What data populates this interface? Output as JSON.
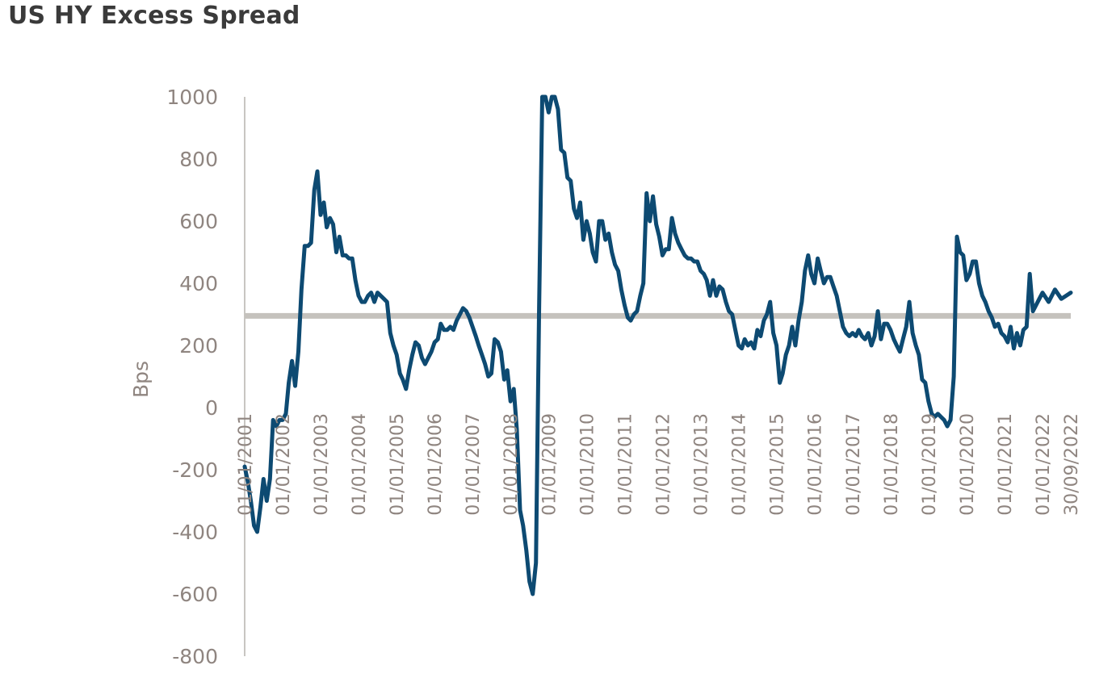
{
  "title": "US HY Excess Spread",
  "chart_data": {
    "type": "line",
    "title": "US HY Excess Spread",
    "xlabel": "",
    "ylabel": "Bps",
    "ylim": [
      -800,
      1000
    ],
    "yticks": [
      "1000",
      "800",
      "600",
      "400",
      "200",
      "0",
      "-200",
      "-400",
      "-600",
      "-800"
    ],
    "xticks": [
      {
        "date": "2001-01-01",
        "label": "01/01/2001"
      },
      {
        "date": "2002-01-01",
        "label": "01/01/2002"
      },
      {
        "date": "2003-01-01",
        "label": "01/01/2003"
      },
      {
        "date": "2004-01-01",
        "label": "01/01/2004"
      },
      {
        "date": "2005-01-01",
        "label": "01/01/2005"
      },
      {
        "date": "2006-01-01",
        "label": "01/01/2006"
      },
      {
        "date": "2007-01-01",
        "label": "01/01/2007"
      },
      {
        "date": "2008-01-01",
        "label": "01/01/2008"
      },
      {
        "date": "2009-01-01",
        "label": "01/01/2009"
      },
      {
        "date": "2010-01-01",
        "label": "01/01/2010"
      },
      {
        "date": "2011-01-01",
        "label": "01/01/2011"
      },
      {
        "date": "2012-01-01",
        "label": "01/01/2012"
      },
      {
        "date": "2013-01-01",
        "label": "01/01/2013"
      },
      {
        "date": "2014-01-01",
        "label": "01/01/2014"
      },
      {
        "date": "2015-01-01",
        "label": "01/01/2015"
      },
      {
        "date": "2016-01-01",
        "label": "01/01/2016"
      },
      {
        "date": "2017-01-01",
        "label": "01/01/2017"
      },
      {
        "date": "2018-01-01",
        "label": "01/01/2018"
      },
      {
        "date": "2019-01-01",
        "label": "01/01/2019"
      },
      {
        "date": "2020-01-01",
        "label": "01/01/2020"
      },
      {
        "date": "2021-01-01",
        "label": "01/01/2021"
      },
      {
        "date": "2022-01-01",
        "label": "01/01/2022"
      },
      {
        "date": "2022-09-30",
        "label": "30/09/2022"
      }
    ],
    "grid": false,
    "legend": "none",
    "reference_line": {
      "y": 295,
      "color": "#c5c2bd"
    },
    "series": [
      {
        "color": "#0d4a72",
        "points": [
          [
            "2001-01-01",
            -190
          ],
          [
            "2001-02-01",
            -240
          ],
          [
            "2001-03-01",
            -300
          ],
          [
            "2001-04-01",
            -380
          ],
          [
            "2001-05-01",
            -400
          ],
          [
            "2001-06-01",
            -320
          ],
          [
            "2001-07-01",
            -230
          ],
          [
            "2001-08-01",
            -300
          ],
          [
            "2001-09-01",
            -230
          ],
          [
            "2001-10-01",
            -40
          ],
          [
            "2001-11-01",
            -60
          ],
          [
            "2001-12-01",
            -40
          ],
          [
            "2002-01-01",
            -40
          ],
          [
            "2002-02-01",
            -20
          ],
          [
            "2002-03-01",
            80
          ],
          [
            "2002-04-01",
            150
          ],
          [
            "2002-05-01",
            70
          ],
          [
            "2002-06-01",
            180
          ],
          [
            "2002-07-01",
            380
          ],
          [
            "2002-08-01",
            520
          ],
          [
            "2002-09-01",
            520
          ],
          [
            "2002-10-01",
            530
          ],
          [
            "2002-11-01",
            700
          ],
          [
            "2002-12-01",
            760
          ],
          [
            "2003-01-01",
            620
          ],
          [
            "2003-02-01",
            660
          ],
          [
            "2003-03-01",
            580
          ],
          [
            "2003-04-01",
            610
          ],
          [
            "2003-05-01",
            590
          ],
          [
            "2003-06-01",
            500
          ],
          [
            "2003-07-01",
            550
          ],
          [
            "2003-08-01",
            490
          ],
          [
            "2003-09-01",
            490
          ],
          [
            "2003-10-01",
            480
          ],
          [
            "2003-11-01",
            480
          ],
          [
            "2003-12-01",
            410
          ],
          [
            "2004-01-01",
            360
          ],
          [
            "2004-02-01",
            340
          ],
          [
            "2004-03-01",
            340
          ],
          [
            "2004-04-01",
            360
          ],
          [
            "2004-05-01",
            370
          ],
          [
            "2004-06-01",
            340
          ],
          [
            "2004-07-01",
            370
          ],
          [
            "2004-08-01",
            360
          ],
          [
            "2004-09-01",
            350
          ],
          [
            "2004-10-01",
            340
          ],
          [
            "2004-11-01",
            240
          ],
          [
            "2004-12-01",
            200
          ],
          [
            "2005-01-01",
            170
          ],
          [
            "2005-02-01",
            110
          ],
          [
            "2005-03-01",
            90
          ],
          [
            "2005-04-01",
            60
          ],
          [
            "2005-05-01",
            120
          ],
          [
            "2005-06-01",
            170
          ],
          [
            "2005-07-01",
            210
          ],
          [
            "2005-08-01",
            200
          ],
          [
            "2005-09-01",
            160
          ],
          [
            "2005-10-01",
            140
          ],
          [
            "2005-11-01",
            160
          ],
          [
            "2005-12-01",
            180
          ],
          [
            "2006-01-01",
            210
          ],
          [
            "2006-02-01",
            220
          ],
          [
            "2006-03-01",
            270
          ],
          [
            "2006-04-01",
            250
          ],
          [
            "2006-05-01",
            250
          ],
          [
            "2006-06-01",
            260
          ],
          [
            "2006-07-01",
            250
          ],
          [
            "2006-08-01",
            280
          ],
          [
            "2006-09-01",
            300
          ],
          [
            "2006-10-01",
            320
          ],
          [
            "2006-11-01",
            310
          ],
          [
            "2006-12-01",
            290
          ],
          [
            "2007-01-01",
            260
          ],
          [
            "2007-02-01",
            230
          ],
          [
            "2007-03-01",
            200
          ],
          [
            "2007-04-01",
            170
          ],
          [
            "2007-05-01",
            140
          ],
          [
            "2007-06-01",
            100
          ],
          [
            "2007-07-01",
            110
          ],
          [
            "2007-08-01",
            220
          ],
          [
            "2007-09-01",
            210
          ],
          [
            "2007-10-01",
            180
          ],
          [
            "2007-11-01",
            90
          ],
          [
            "2007-12-01",
            120
          ],
          [
            "2008-01-01",
            20
          ],
          [
            "2008-02-01",
            60
          ],
          [
            "2008-03-01",
            -70
          ],
          [
            "2008-04-01",
            -330
          ],
          [
            "2008-05-01",
            -380
          ],
          [
            "2008-06-01",
            -460
          ],
          [
            "2008-07-01",
            -560
          ],
          [
            "2008-08-01",
            -600
          ],
          [
            "2008-09-01",
            -500
          ],
          [
            "2008-10-01",
            300
          ],
          [
            "2008-11-01",
            1000
          ],
          [
            "2008-12-01",
            1000
          ],
          [
            "2009-01-01",
            950
          ],
          [
            "2009-02-01",
            1000
          ],
          [
            "2009-03-01",
            1000
          ],
          [
            "2009-04-01",
            960
          ],
          [
            "2009-05-01",
            830
          ],
          [
            "2009-06-01",
            820
          ],
          [
            "2009-07-01",
            740
          ],
          [
            "2009-08-01",
            730
          ],
          [
            "2009-09-01",
            640
          ],
          [
            "2009-10-01",
            610
          ],
          [
            "2009-11-01",
            660
          ],
          [
            "2009-12-01",
            540
          ],
          [
            "2010-01-01",
            600
          ],
          [
            "2010-02-01",
            560
          ],
          [
            "2010-03-01",
            500
          ],
          [
            "2010-04-01",
            470
          ],
          [
            "2010-05-01",
            600
          ],
          [
            "2010-06-01",
            600
          ],
          [
            "2010-07-01",
            540
          ],
          [
            "2010-08-01",
            560
          ],
          [
            "2010-09-01",
            500
          ],
          [
            "2010-10-01",
            460
          ],
          [
            "2010-11-01",
            440
          ],
          [
            "2010-12-01",
            380
          ],
          [
            "2011-01-01",
            330
          ],
          [
            "2011-02-01",
            290
          ],
          [
            "2011-03-01",
            280
          ],
          [
            "2011-04-01",
            300
          ],
          [
            "2011-05-01",
            310
          ],
          [
            "2011-06-01",
            360
          ],
          [
            "2011-07-01",
            400
          ],
          [
            "2011-08-01",
            690
          ],
          [
            "2011-09-01",
            600
          ],
          [
            "2011-10-01",
            680
          ],
          [
            "2011-11-01",
            590
          ],
          [
            "2011-12-01",
            550
          ],
          [
            "2012-01-01",
            490
          ],
          [
            "2012-02-01",
            510
          ],
          [
            "2012-03-01",
            510
          ],
          [
            "2012-04-01",
            610
          ],
          [
            "2012-05-01",
            560
          ],
          [
            "2012-06-01",
            530
          ],
          [
            "2012-07-01",
            510
          ],
          [
            "2012-08-01",
            490
          ],
          [
            "2012-09-01",
            480
          ],
          [
            "2012-10-01",
            480
          ],
          [
            "2012-11-01",
            470
          ],
          [
            "2012-12-01",
            470
          ],
          [
            "2013-01-01",
            440
          ],
          [
            "2013-02-01",
            430
          ],
          [
            "2013-03-01",
            410
          ],
          [
            "2013-04-01",
            360
          ],
          [
            "2013-05-01",
            410
          ],
          [
            "2013-06-01",
            360
          ],
          [
            "2013-07-01",
            390
          ],
          [
            "2013-08-01",
            380
          ],
          [
            "2013-09-01",
            340
          ],
          [
            "2013-10-01",
            310
          ],
          [
            "2013-11-01",
            300
          ],
          [
            "2013-12-01",
            250
          ],
          [
            "2014-01-01",
            200
          ],
          [
            "2014-02-01",
            190
          ],
          [
            "2014-03-01",
            220
          ],
          [
            "2014-04-01",
            200
          ],
          [
            "2014-05-01",
            210
          ],
          [
            "2014-06-01",
            190
          ],
          [
            "2014-07-01",
            250
          ],
          [
            "2014-08-01",
            230
          ],
          [
            "2014-09-01",
            280
          ],
          [
            "2014-10-01",
            300
          ],
          [
            "2014-11-01",
            340
          ],
          [
            "2014-12-01",
            240
          ],
          [
            "2015-01-01",
            200
          ],
          [
            "2015-02-01",
            80
          ],
          [
            "2015-03-01",
            110
          ],
          [
            "2015-04-01",
            170
          ],
          [
            "2015-05-01",
            200
          ],
          [
            "2015-06-01",
            260
          ],
          [
            "2015-07-01",
            200
          ],
          [
            "2015-08-01",
            280
          ],
          [
            "2015-09-01",
            340
          ],
          [
            "2015-10-01",
            440
          ],
          [
            "2015-11-01",
            490
          ],
          [
            "2015-12-01",
            430
          ],
          [
            "2016-01-01",
            400
          ],
          [
            "2016-02-01",
            480
          ],
          [
            "2016-03-01",
            440
          ],
          [
            "2016-04-01",
            400
          ],
          [
            "2016-05-01",
            420
          ],
          [
            "2016-06-01",
            420
          ],
          [
            "2016-07-01",
            390
          ],
          [
            "2016-08-01",
            360
          ],
          [
            "2016-09-01",
            310
          ],
          [
            "2016-10-01",
            260
          ],
          [
            "2016-11-01",
            240
          ],
          [
            "2016-12-01",
            230
          ],
          [
            "2017-01-01",
            240
          ],
          [
            "2017-02-01",
            230
          ],
          [
            "2017-03-01",
            250
          ],
          [
            "2017-04-01",
            230
          ],
          [
            "2017-05-01",
            220
          ],
          [
            "2017-06-01",
            240
          ],
          [
            "2017-07-01",
            200
          ],
          [
            "2017-08-01",
            230
          ],
          [
            "2017-09-01",
            310
          ],
          [
            "2017-10-01",
            220
          ],
          [
            "2017-11-01",
            270
          ],
          [
            "2017-12-01",
            270
          ],
          [
            "2018-01-01",
            250
          ],
          [
            "2018-02-01",
            220
          ],
          [
            "2018-03-01",
            200
          ],
          [
            "2018-04-01",
            180
          ],
          [
            "2018-05-01",
            220
          ],
          [
            "2018-06-01",
            260
          ],
          [
            "2018-07-01",
            340
          ],
          [
            "2018-08-01",
            240
          ],
          [
            "2018-09-01",
            200
          ],
          [
            "2018-10-01",
            170
          ],
          [
            "2018-11-01",
            90
          ],
          [
            "2018-12-01",
            80
          ],
          [
            "2019-01-01",
            20
          ],
          [
            "2019-02-01",
            -20
          ],
          [
            "2019-03-01",
            -30
          ],
          [
            "2019-04-01",
            -20
          ],
          [
            "2019-05-01",
            -30
          ],
          [
            "2019-06-01",
            -40
          ],
          [
            "2019-07-01",
            -60
          ],
          [
            "2019-08-01",
            -40
          ],
          [
            "2019-09-01",
            100
          ],
          [
            "2019-10-01",
            550
          ],
          [
            "2019-11-01",
            500
          ],
          [
            "2019-12-01",
            490
          ],
          [
            "2020-01-01",
            410
          ],
          [
            "2020-02-01",
            430
          ],
          [
            "2020-03-01",
            470
          ],
          [
            "2020-04-01",
            470
          ],
          [
            "2020-05-01",
            400
          ],
          [
            "2020-06-01",
            360
          ],
          [
            "2020-07-01",
            340
          ],
          [
            "2020-08-01",
            310
          ],
          [
            "2020-09-01",
            290
          ],
          [
            "2020-10-01",
            260
          ],
          [
            "2020-11-01",
            270
          ],
          [
            "2020-12-01",
            240
          ],
          [
            "2021-01-01",
            230
          ],
          [
            "2021-02-01",
            210
          ],
          [
            "2021-03-01",
            260
          ],
          [
            "2021-04-01",
            190
          ],
          [
            "2021-05-01",
            240
          ],
          [
            "2021-06-01",
            200
          ],
          [
            "2021-07-01",
            250
          ],
          [
            "2021-08-01",
            260
          ],
          [
            "2021-09-01",
            430
          ],
          [
            "2021-10-01",
            310
          ],
          [
            "2021-11-01",
            330
          ],
          [
            "2021-12-01",
            350
          ],
          [
            "2022-01-01",
            370
          ],
          [
            "2022-03-01",
            340
          ],
          [
            "2022-05-01",
            380
          ],
          [
            "2022-07-01",
            350
          ],
          [
            "2022-09-30",
            370
          ]
        ]
      }
    ]
  }
}
